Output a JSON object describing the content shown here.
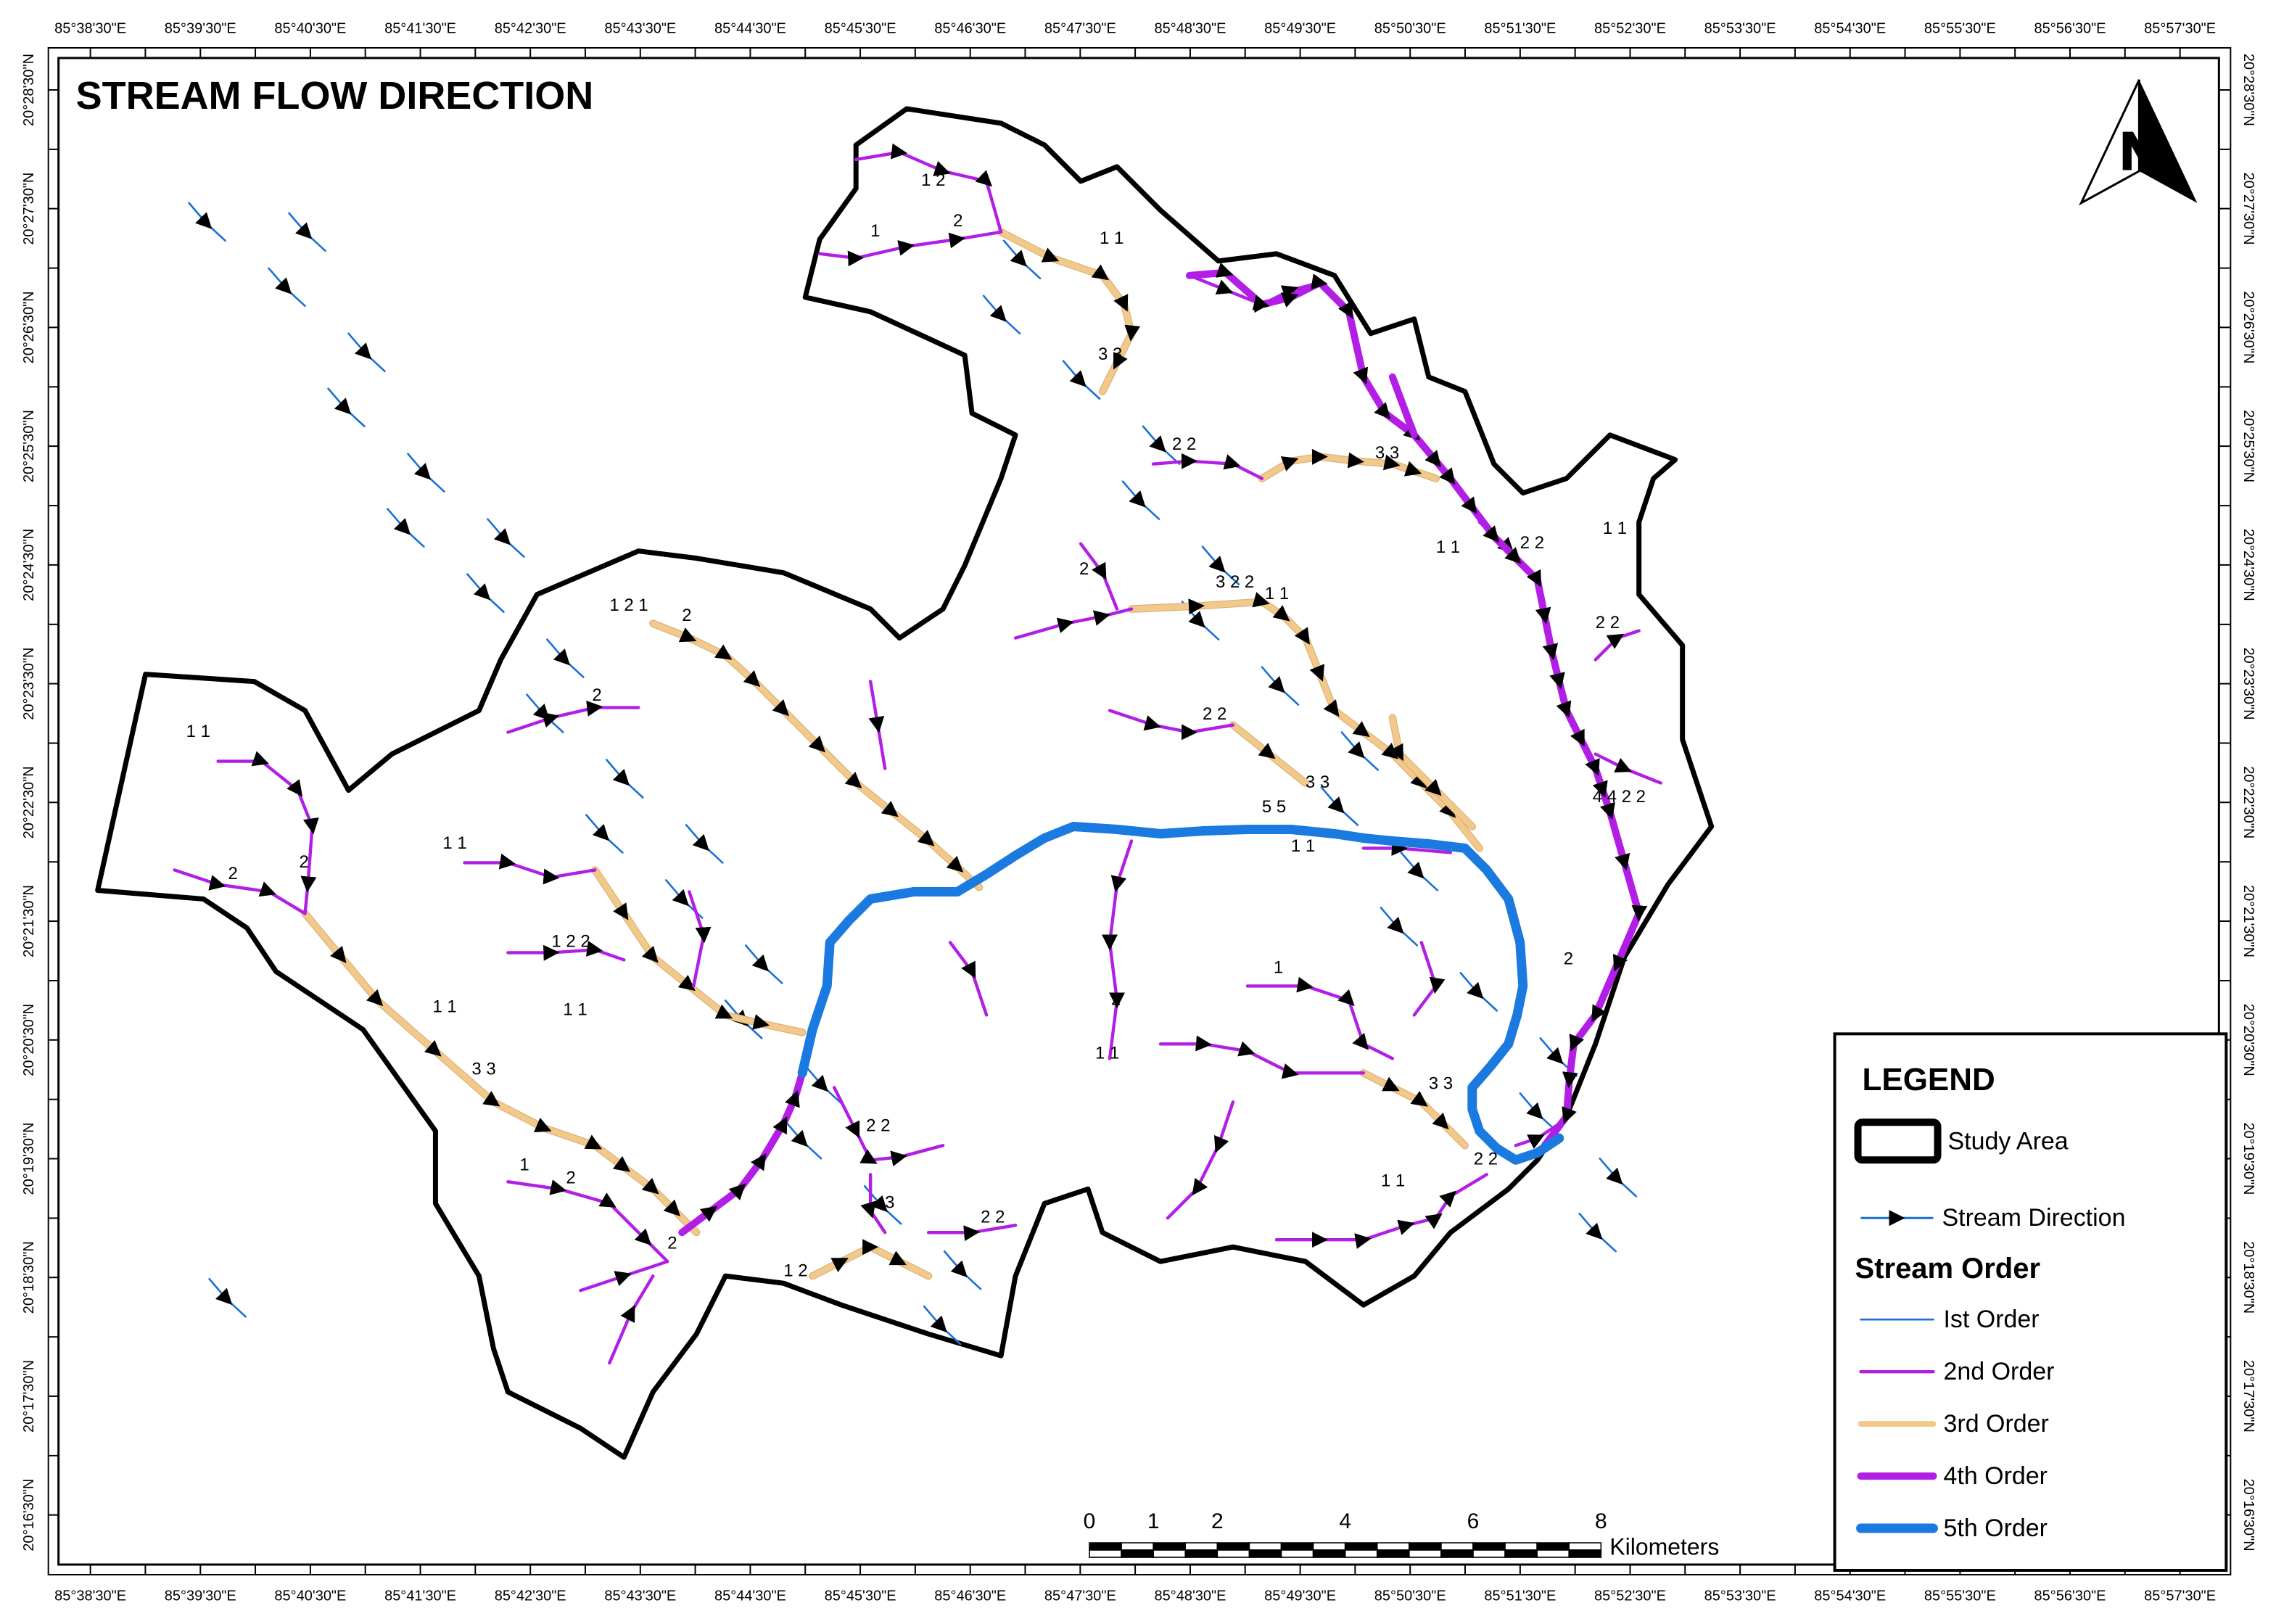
{
  "map": {
    "title": "STREAM FLOW DIRECTION",
    "north_label": "N",
    "longitude_labels": [
      "85°38'30\"E",
      "85°39'30\"E",
      "85°40'30\"E",
      "85°41'30\"E",
      "85°42'30\"E",
      "85°43'30\"E",
      "85°44'30\"E",
      "85°45'30\"E",
      "85°46'30\"E",
      "85°47'30\"E",
      "85°48'30\"E",
      "85°49'30\"E",
      "85°50'30\"E",
      "85°51'30\"E",
      "85°52'30\"E",
      "85°53'30\"E",
      "85°54'30\"E",
      "85°55'30\"E",
      "85°56'30\"E",
      "85°57'30\"E"
    ],
    "latitude_labels": [
      "20°28'30\"N",
      "20°27'30\"N",
      "20°26'30\"N",
      "20°25'30\"N",
      "20°24'30\"N",
      "20°23'30\"N",
      "20°22'30\"N",
      "20°21'30\"N",
      "20°20'30\"N",
      "20°19'30\"N",
      "20°18'30\"N",
      "20°17'30\"N",
      "20°16'30\"N"
    ],
    "stream_labels": [
      "1 2",
      "1",
      "2",
      "1 1",
      "3 3",
      "2 2",
      "3 3",
      "2 2",
      "1 1",
      "3 2 2",
      "1 1",
      "2",
      "1 2 1",
      "2",
      "2",
      "1 1",
      "2",
      "2",
      "1 1",
      "1 2 2",
      "1 1",
      "3 3",
      "1 1",
      "5 5",
      "1 1",
      "3 3",
      "4 4 2 2",
      "2 2",
      "1 1",
      "2",
      "1 1",
      "2",
      "1 1",
      "2 2",
      "3 3",
      "2 2",
      "1 2",
      "3",
      "2 2",
      "2",
      "1",
      "2",
      "2 2",
      "1"
    ]
  },
  "legend": {
    "title": "LEGEND",
    "study_area": "Study Area",
    "stream_direction": "Stream Direction",
    "section_title": "Stream Order",
    "orders": [
      {
        "label": "Ist Order",
        "color": "#1a6fd6"
      },
      {
        "label": "2nd Order",
        "color": "#b21ee6"
      },
      {
        "label": "3rd Order",
        "color": "#f2c98a"
      },
      {
        "label": "4th Order",
        "color": "#b21ee6"
      },
      {
        "label": "5th Order",
        "color": "#1a7ae0"
      }
    ]
  },
  "scale_bar": {
    "ticks": [
      0,
      1,
      2,
      4,
      6,
      8
    ],
    "unit": "Kilometers"
  }
}
